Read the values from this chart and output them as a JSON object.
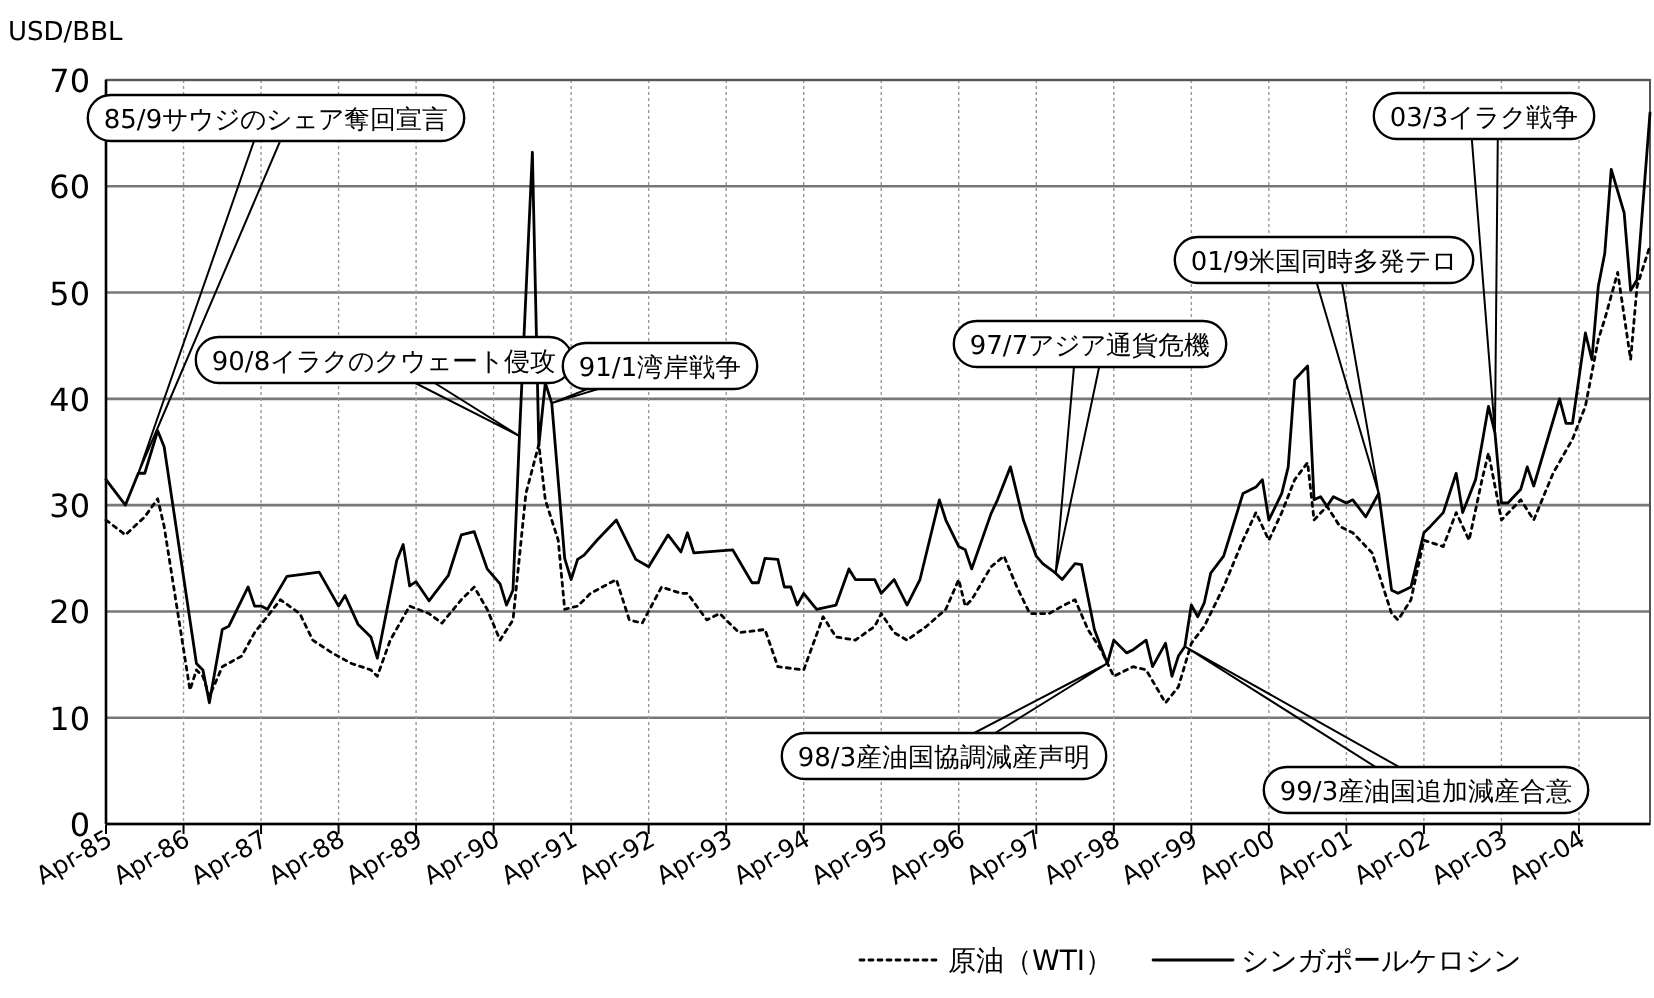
{
  "chart_data": {
    "type": "line",
    "ylabel": "USD/BBL",
    "xlim": [
      "1985-04",
      "2005-03"
    ],
    "ylim": [
      0,
      70
    ],
    "yticks": [
      0,
      10,
      20,
      30,
      40,
      50,
      60,
      70
    ],
    "xticks": [
      {
        "value": "1985-04",
        "label": "Apr-85"
      },
      {
        "value": "1986-04",
        "label": "Apr-86"
      },
      {
        "value": "1987-04",
        "label": "Apr-87"
      },
      {
        "value": "1988-04",
        "label": "Apr-88"
      },
      {
        "value": "1989-04",
        "label": "Apr-89"
      },
      {
        "value": "1990-04",
        "label": "Apr-90"
      },
      {
        "value": "1991-04",
        "label": "Apr-91"
      },
      {
        "value": "1992-04",
        "label": "Apr-92"
      },
      {
        "value": "1993-04",
        "label": "Apr-93"
      },
      {
        "value": "1994-04",
        "label": "Apr-94"
      },
      {
        "value": "1995-04",
        "label": "Apr-95"
      },
      {
        "value": "1996-04",
        "label": "Apr-96"
      },
      {
        "value": "1997-04",
        "label": "Apr-97"
      },
      {
        "value": "1998-04",
        "label": "Apr-98"
      },
      {
        "value": "1999-04",
        "label": "Apr-99"
      },
      {
        "value": "2000-04",
        "label": "Apr-00"
      },
      {
        "value": "2001-04",
        "label": "Apr-01"
      },
      {
        "value": "2002-04",
        "label": "Apr-02"
      },
      {
        "value": "2003-04",
        "label": "Apr-03"
      },
      {
        "value": "2004-04",
        "label": "Apr-04"
      }
    ],
    "grid": true,
    "legend": "bottom",
    "marker": "none",
    "series": [
      {
        "name": "原油（WTI）",
        "color": "#000000",
        "line_style": "dotted",
        "x": [
          "1985-04",
          "1985-07",
          "1985-10",
          "1985-12",
          "1986-01",
          "1986-05",
          "1986-06",
          "1986-07",
          "1986-08",
          "1986-10",
          "1987-01",
          "1987-03",
          "1987-07",
          "1987-10",
          "1987-12",
          "1988-03",
          "1988-06",
          "1988-09",
          "1988-10",
          "1988-12",
          "1989-03",
          "1989-06",
          "1989-08",
          "1989-11",
          "1990-01",
          "1990-03",
          "1990-05",
          "1990-07",
          "1990-09",
          "1990-11",
          "1990-12",
          "1991-02",
          "1991-03",
          "1991-05",
          "1991-07",
          "1991-11",
          "1992-01",
          "1992-03",
          "1992-06",
          "1992-09",
          "1992-10",
          "1993-01",
          "1993-03",
          "1993-06",
          "1993-10",
          "1993-12",
          "1994-04",
          "1994-07",
          "1994-09",
          "1994-12",
          "1995-03",
          "1995-04",
          "1995-06",
          "1995-08",
          "1995-11",
          "1996-02",
          "1996-04",
          "1996-05",
          "1996-06",
          "1996-09",
          "1996-11",
          "1997-01",
          "1997-03",
          "1997-06",
          "1997-08",
          "1997-10",
          "1997-12",
          "1998-02",
          "1998-04",
          "1998-07",
          "1998-09",
          "1998-12",
          "1999-02",
          "1999-04",
          "1999-06",
          "1999-09",
          "1999-12",
          "2000-02",
          "2000-04",
          "2000-06",
          "2000-08",
          "2000-10",
          "2000-11",
          "2001-01",
          "2001-03",
          "2001-05",
          "2001-08",
          "2001-11",
          "2001-12",
          "2002-02",
          "2002-04",
          "2002-07",
          "2002-09",
          "2002-11",
          "2003-01",
          "2003-02",
          "2003-03",
          "2003-04",
          "2003-07",
          "2003-09",
          "2003-12",
          "2004-03",
          "2004-05",
          "2004-07",
          "2004-08",
          "2004-10",
          "2004-12",
          "2005-01",
          "2005-03"
        ],
        "values": [
          28.6,
          27.2,
          28.9,
          30.6,
          28.0,
          12.6,
          14.5,
          13.9,
          12.0,
          14.8,
          15.8,
          18.0,
          21.1,
          19.8,
          17.3,
          16.1,
          15.1,
          14.5,
          13.9,
          17.3,
          20.5,
          19.8,
          18.9,
          21.1,
          22.3,
          20.2,
          17.3,
          19.2,
          31.1,
          35.7,
          30.5,
          26.7,
          20.2,
          20.5,
          21.7,
          23.0,
          19.2,
          18.9,
          22.3,
          21.7,
          21.7,
          19.2,
          19.8,
          18.0,
          18.3,
          14.8,
          14.5,
          19.5,
          17.6,
          17.3,
          18.6,
          19.8,
          18.0,
          17.3,
          18.6,
          20.2,
          23.0,
          20.5,
          21.1,
          24.2,
          25.2,
          22.3,
          19.8,
          19.8,
          20.5,
          21.1,
          18.3,
          16.4,
          13.9,
          14.8,
          14.5,
          11.4,
          12.9,
          17.0,
          18.6,
          22.3,
          26.7,
          29.3,
          26.7,
          29.3,
          32.4,
          34.0,
          28.6,
          29.9,
          28.0,
          27.4,
          25.5,
          19.8,
          19.2,
          21.1,
          26.7,
          26.1,
          29.3,
          26.7,
          32.4,
          34.9,
          31.8,
          28.6,
          30.5,
          28.6,
          33.0,
          36.2,
          39.3,
          45.6,
          47.5,
          51.9,
          43.7,
          50.6,
          54.4
        ]
      },
      {
        "name": "シンガポールケロシン",
        "color": "#000000",
        "line_style": "solid",
        "x": [
          "1985-04",
          "1985-07",
          "1985-09",
          "1985-10",
          "1985-12",
          "1986-01",
          "1986-06",
          "1986-07",
          "1986-08",
          "1986-10",
          "1986-11",
          "1987-02",
          "1987-03",
          "1987-04",
          "1987-05",
          "1987-08",
          "1988-01",
          "1988-04",
          "1988-05",
          "1988-07",
          "1988-09",
          "1988-10",
          "1989-01",
          "1989-02",
          "1989-03",
          "1989-04",
          "1989-06",
          "1989-09",
          "1989-11",
          "1990-01",
          "1990-03",
          "1990-05",
          "1990-06",
          "1990-07",
          "1990-08",
          "1990-10",
          "1990-11",
          "1990-12",
          "1991-01",
          "1991-03",
          "1991-04",
          "1991-05",
          "1991-06",
          "1991-08",
          "1991-11",
          "1992-02",
          "1992-04",
          "1992-07",
          "1992-09",
          "1992-10",
          "1992-11",
          "1993-05",
          "1993-08",
          "1993-09",
          "1993-10",
          "1993-12",
          "1994-01",
          "1994-02",
          "1994-03",
          "1994-04",
          "1994-06",
          "1994-09",
          "1994-11",
          "1994-12",
          "1995-03",
          "1995-04",
          "1995-06",
          "1995-08",
          "1995-10",
          "1996-01",
          "1996-02",
          "1996-04",
          "1996-05",
          "1996-06",
          "1996-09",
          "1996-10",
          "1996-12",
          "1997-02",
          "1997-04",
          "1997-05",
          "1997-07",
          "1997-08",
          "1997-10",
          "1997-11",
          "1998-01",
          "1998-03",
          "1998-04",
          "1998-06",
          "1998-07",
          "1998-09",
          "1998-10",
          "1998-12",
          "1999-01",
          "1999-02",
          "1999-03",
          "1999-04",
          "1999-05",
          "1999-06",
          "1999-07",
          "1999-09",
          "1999-12",
          "2000-02",
          "2000-03",
          "2000-04",
          "2000-06",
          "2000-07",
          "2000-08",
          "2000-10",
          "2000-11",
          "2000-12",
          "2001-01",
          "2001-02",
          "2001-04",
          "2001-05",
          "2001-07",
          "2001-09",
          "2001-11",
          "2001-12",
          "2002-02",
          "2002-04",
          "2002-05",
          "2002-07",
          "2002-09",
          "2002-10",
          "2002-12",
          "2003-01",
          "2003-02",
          "2003-03",
          "2003-04",
          "2003-05",
          "2003-07",
          "2003-08",
          "2003-09",
          "2004-01",
          "2004-02",
          "2004-03",
          "2004-05",
          "2004-06",
          "2004-07",
          "2004-08",
          "2004-09",
          "2004-11",
          "2004-12",
          "2005-01",
          "2005-03"
        ],
        "values": [
          32.4,
          30.0,
          33.0,
          33.0,
          37.0,
          35.5,
          15.1,
          14.5,
          11.4,
          18.3,
          18.6,
          22.3,
          20.5,
          20.5,
          20.2,
          23.3,
          23.7,
          20.5,
          21.5,
          18.8,
          17.6,
          15.6,
          24.8,
          26.3,
          22.4,
          22.8,
          21.0,
          23.4,
          27.2,
          27.5,
          24.0,
          22.6,
          20.6,
          22.0,
          36.5,
          63.2,
          35.6,
          41.5,
          39.6,
          25.0,
          23.0,
          24.9,
          25.3,
          26.7,
          28.6,
          24.9,
          24.2,
          27.2,
          25.6,
          27.4,
          25.5,
          25.8,
          22.7,
          22.7,
          25.0,
          24.9,
          22.3,
          22.3,
          20.6,
          21.7,
          20.2,
          20.6,
          24.0,
          23.0,
          23.0,
          21.7,
          23.0,
          20.6,
          23.0,
          30.5,
          28.6,
          26.1,
          25.8,
          24.0,
          29.2,
          30.5,
          33.6,
          28.6,
          25.2,
          24.5,
          23.6,
          23.0,
          24.5,
          24.4,
          18.3,
          15.1,
          17.3,
          16.1,
          16.4,
          17.3,
          14.8,
          17.0,
          13.9,
          15.8,
          16.7,
          20.6,
          19.5,
          20.8,
          23.6,
          25.2,
          31.1,
          31.7,
          32.4,
          28.6,
          31.1,
          33.6,
          41.8,
          43.1,
          30.5,
          30.8,
          29.9,
          30.8,
          30.2,
          30.5,
          28.9,
          31.1,
          22.0,
          21.7,
          22.3,
          27.4,
          28.0,
          29.3,
          33.0,
          29.3,
          32.4,
          35.8,
          39.3,
          36.8,
          30.2,
          30.2,
          31.5,
          33.6,
          31.8,
          40.0,
          37.7,
          37.7,
          46.2,
          43.7,
          50.6,
          53.7,
          61.6,
          57.5,
          50.2,
          51.2,
          66.9
        ]
      }
    ],
    "annotations": [
      {
        "text": "85/9サウジのシェア奪回宣言",
        "x": "1985-09",
        "y": 33.0
      },
      {
        "text": "90/8イラクのクウェート侵攻",
        "x": "1990-08",
        "y": 36.5
      },
      {
        "text": "91/1湾岸戦争",
        "x": "1991-01",
        "y": 39.6
      },
      {
        "text": "97/7アジア通貨危機",
        "x": "1997-07",
        "y": 23.6
      },
      {
        "text": "98/3産油国協調減産声明",
        "x": "1998-03",
        "y": 15.1
      },
      {
        "text": "99/3産油国追加減産合意",
        "x": "1999-03",
        "y": 16.7
      },
      {
        "text": "01/9米国同時多発テロ",
        "x": "2001-09",
        "y": 31.1
      },
      {
        "text": "03/3イラク戦争",
        "x": "2003-03",
        "y": 36.8
      }
    ]
  }
}
